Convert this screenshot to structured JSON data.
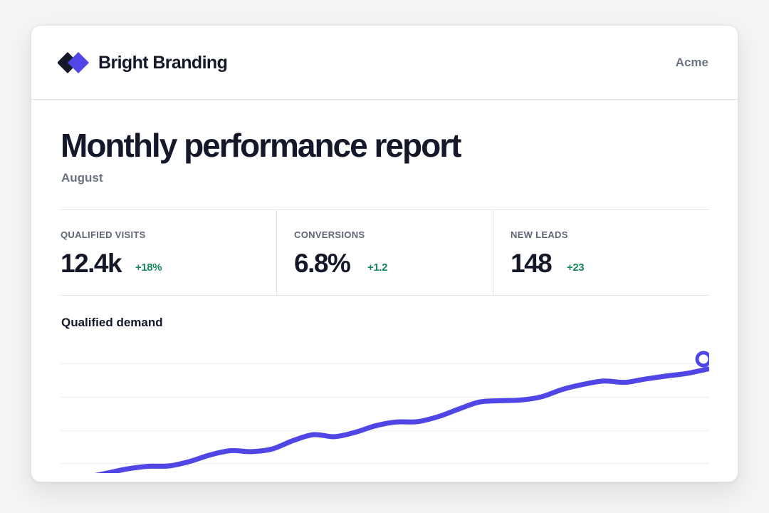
{
  "brand": {
    "name": "Bright Branding",
    "logo_icon": "diamond-logo-icon"
  },
  "header": {
    "organization": "Acme"
  },
  "report": {
    "title": "Monthly performance report",
    "period": "August"
  },
  "metrics": [
    {
      "label": "QUALIFIED VISITS",
      "value": "12.4k",
      "delta": "+18%"
    },
    {
      "label": "CONVERSIONS",
      "value": "6.8%",
      "delta": "+1.2"
    },
    {
      "label": "NEW LEADS",
      "value": "148",
      "delta": "+23"
    }
  ],
  "colors": {
    "accent": "#5046e5",
    "accent_dark": "#141829",
    "positive": "#16885a",
    "muted": "#6b7280"
  },
  "chart_data": {
    "type": "line",
    "title": "Qualified demand",
    "xlabel": "",
    "ylabel": "",
    "grid": true,
    "legend": "none",
    "ylim": [
      0,
      4
    ],
    "x": [
      0,
      1,
      2,
      3,
      4,
      5,
      6,
      7,
      8,
      9,
      10,
      11,
      12,
      13,
      14,
      15,
      16,
      17,
      18,
      19,
      20,
      21,
      22,
      23,
      24,
      25,
      26,
      27,
      28,
      29,
      30,
      31
    ],
    "series": [
      {
        "values": [
          0.5,
          0.58,
          0.7,
          0.83,
          0.91,
          0.92,
          1.05,
          1.25,
          1.38,
          1.35,
          1.43,
          1.68,
          1.86,
          1.8,
          1.93,
          2.13,
          2.24,
          2.25,
          2.4,
          2.63,
          2.84,
          2.88,
          2.9,
          3.0,
          3.22,
          3.37,
          3.47,
          3.43,
          3.53,
          3.62,
          3.7,
          3.83
        ],
        "end_marker": true
      }
    ]
  }
}
